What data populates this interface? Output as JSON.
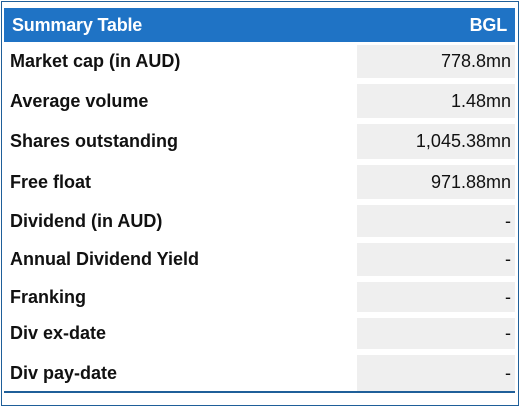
{
  "table": {
    "title": "Summary Table",
    "ticker": "BGL",
    "rows": [
      {
        "label": "Market cap (in AUD)",
        "value": "778.8mn"
      },
      {
        "label": "Average volume",
        "value": "1.48mn"
      },
      {
        "label": "Shares outstanding",
        "value": "1,045.38mn"
      },
      {
        "label": "Free float",
        "value": "971.88mn"
      },
      {
        "label": "Dividend (in AUD)",
        "value": "-"
      },
      {
        "label": "Annual Dividend Yield",
        "value": "-"
      },
      {
        "label": "Franking",
        "value": "-"
      },
      {
        "label": "Div ex-date",
        "value": "-"
      },
      {
        "label": "Div pay-date",
        "value": "-"
      }
    ]
  },
  "colors": {
    "header_bg": "#1f73c5",
    "header_text": "#ffffff",
    "value_bg": "#efefef",
    "border": "#1f5f99"
  }
}
